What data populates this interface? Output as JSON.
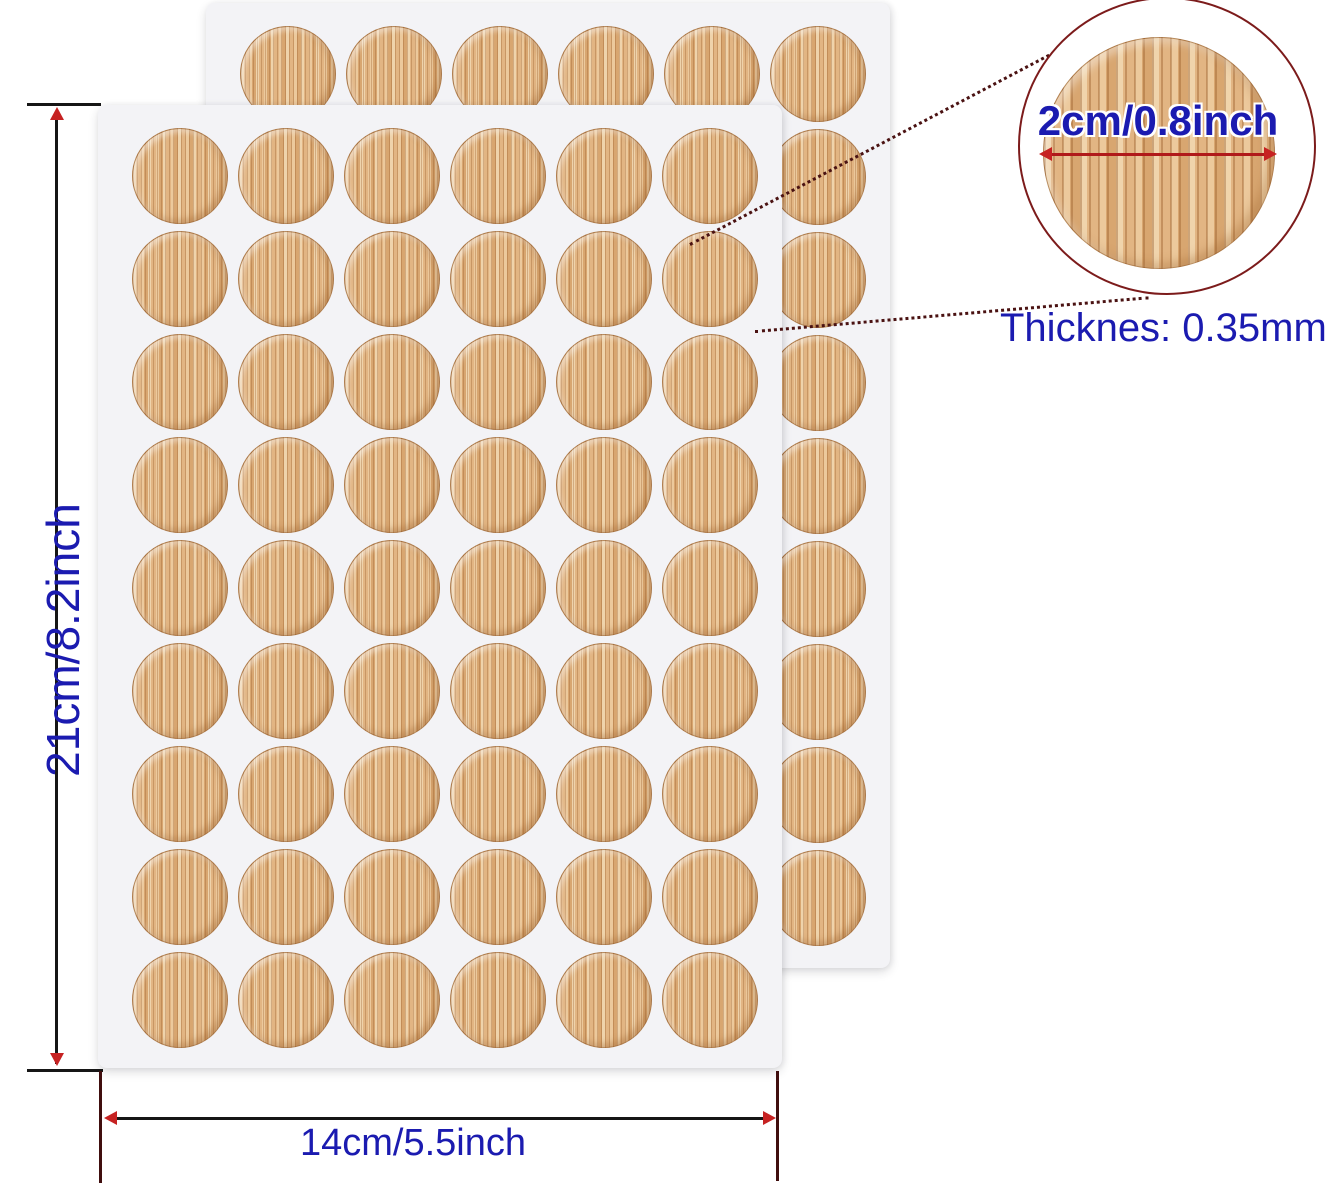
{
  "scene": {
    "diameter_label": "2cm/0.8inch",
    "thickness_label": "Thicknes: 0.35mm",
    "height_label": "21cm/8.2inch",
    "width_label": "14cm/5.5inch"
  },
  "product": {
    "sheet_count": 2,
    "grid_rows": 9,
    "grid_cols": 6,
    "caps_per_sheet": 54
  },
  "colors": {
    "label_blue": "#1b1bb0",
    "arrow_red": "#c62222",
    "diameter_arrow_red": "#b01a1a",
    "dimension_line_dark": "#161616",
    "extension_dark_red": "#400e0e",
    "magnifier_ring_red": "#7c1b1b",
    "leader_dot_dark_red": "#4a1212",
    "sheet_background": "#f3f3f6",
    "wood_base": "#e2b583",
    "wood_dark_stripe": "#d8a670",
    "wood_light_stripe": "#efd3ab",
    "page_background": "#ffffff"
  }
}
